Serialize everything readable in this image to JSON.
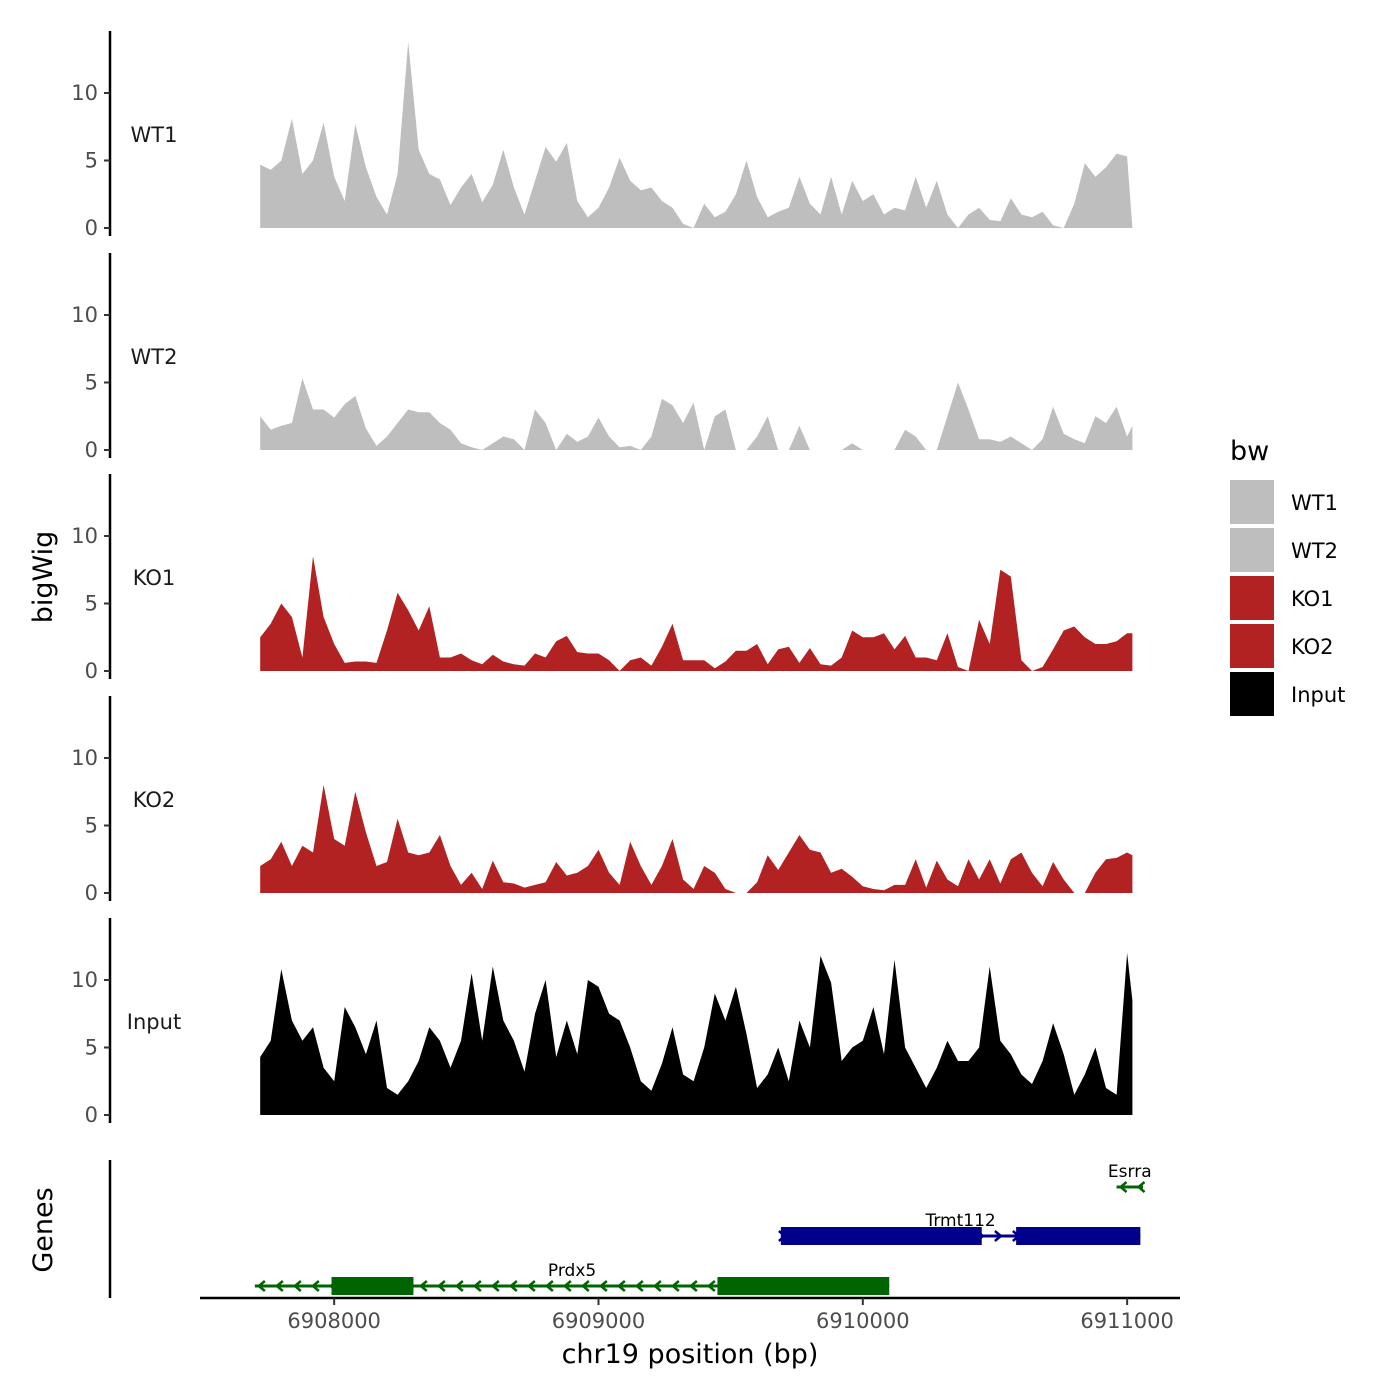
{
  "chart_data": {
    "type": "area",
    "title": "",
    "ylabel": "bigWig",
    "genes_label": "Genes",
    "xlabel": "chr19 position (bp)",
    "xlim": [
      6907500,
      6911200
    ],
    "ylim": [
      0,
      14.5
    ],
    "yticks": [
      0,
      5,
      10
    ],
    "xticks": [
      6908000,
      6909000,
      6910000,
      6911000
    ],
    "xtick_labels": [
      "6908000",
      "6909000",
      "6910000",
      "6911000"
    ],
    "legend": {
      "title": "bw",
      "position": "right",
      "items": [
        {
          "label": "WT1",
          "color": "#bebebe"
        },
        {
          "label": "WT2",
          "color": "#bebebe"
        },
        {
          "label": "KO1",
          "color": "#b22222"
        },
        {
          "label": "KO2",
          "color": "#b22222"
        },
        {
          "label": "Input",
          "color": "#000000"
        }
      ]
    },
    "x": [
      6907720,
      6907760,
      6907800,
      6907840,
      6907880,
      6907920,
      6907960,
      6908000,
      6908040,
      6908080,
      6908120,
      6908160,
      6908200,
      6908240,
      6908280,
      6908320,
      6908360,
      6908400,
      6908440,
      6908480,
      6908520,
      6908560,
      6908600,
      6908640,
      6908680,
      6908720,
      6908760,
      6908800,
      6908840,
      6908880,
      6908920,
      6908960,
      6909000,
      6909040,
      6909080,
      6909120,
      6909160,
      6909200,
      6909240,
      6909280,
      6909320,
      6909360,
      6909400,
      6909440,
      6909480,
      6909520,
      6909560,
      6909600,
      6909640,
      6909680,
      6909720,
      6909760,
      6909800,
      6909840,
      6909880,
      6909920,
      6909960,
      6910000,
      6910040,
      6910080,
      6910120,
      6910160,
      6910200,
      6910240,
      6910280,
      6910320,
      6910360,
      6910400,
      6910440,
      6910480,
      6910520,
      6910560,
      6910600,
      6910640,
      6910680,
      6910720,
      6910760,
      6910800,
      6910840,
      6910880,
      6910920,
      6910960,
      6911000,
      6911020
    ],
    "series": [
      {
        "name": "WT1",
        "color": "#bebebe",
        "values": [
          4.7,
          4.3,
          5.0,
          8.1,
          4.0,
          5.0,
          7.8,
          3.8,
          2.0,
          7.7,
          4.5,
          2.3,
          1.0,
          4.0,
          13.8,
          5.8,
          4.0,
          3.6,
          1.7,
          3.0,
          4.0,
          1.9,
          3.2,
          5.8,
          3.0,
          1.0,
          3.5,
          6.0,
          4.9,
          6.3,
          2.0,
          0.8,
          1.5,
          3.0,
          5.2,
          3.5,
          2.8,
          3.0,
          2.0,
          1.5,
          0.3,
          0.0,
          1.8,
          0.8,
          1.2,
          2.5,
          5.0,
          2.3,
          0.8,
          1.2,
          1.5,
          3.8,
          1.8,
          1.0,
          3.8,
          1.0,
          3.5,
          2.0,
          2.5,
          1.0,
          1.5,
          1.3,
          3.8,
          1.5,
          3.5,
          1.0,
          0.0,
          1.0,
          1.5,
          0.6,
          0.5,
          2.2,
          1.0,
          0.8,
          1.2,
          0.2,
          0.0,
          1.8,
          4.8,
          3.8,
          4.5,
          5.5,
          5.3,
          0.0
        ]
      },
      {
        "name": "WT2",
        "color": "#bebebe",
        "values": [
          2.5,
          1.5,
          1.8,
          2.0,
          5.3,
          3.0,
          3.0,
          2.4,
          3.4,
          4.0,
          1.6,
          0.3,
          1.0,
          2.0,
          3.0,
          2.8,
          2.8,
          2.0,
          1.5,
          0.5,
          0.2,
          0.0,
          0.5,
          1.0,
          0.8,
          0.0,
          3.0,
          2.0,
          0.0,
          1.2,
          0.6,
          1.0,
          2.4,
          1.0,
          0.2,
          0.3,
          0.0,
          1.0,
          3.8,
          3.3,
          2.0,
          3.5,
          0.0,
          2.5,
          3.0,
          0.0,
          0.0,
          1.0,
          2.5,
          0.0,
          0.0,
          1.8,
          0.0,
          0.0,
          0.0,
          0.0,
          0.5,
          0.0,
          0.0,
          0.0,
          0.0,
          1.5,
          1.0,
          0.0,
          0.0,
          2.5,
          5.0,
          3.0,
          0.8,
          0.8,
          0.6,
          1.0,
          0.5,
          0.0,
          0.8,
          3.2,
          1.2,
          0.8,
          0.5,
          2.5,
          2.0,
          3.2,
          1.0,
          1.8
        ]
      },
      {
        "name": "KO1",
        "color": "#b22222",
        "values": [
          2.5,
          3.5,
          5.0,
          4.0,
          1.0,
          8.5,
          4.0,
          2.0,
          0.6,
          0.7,
          0.7,
          0.6,
          3.0,
          5.8,
          4.5,
          3.0,
          4.8,
          1.0,
          1.0,
          1.3,
          0.8,
          0.5,
          1.2,
          0.7,
          0.5,
          0.4,
          1.3,
          1.0,
          2.2,
          2.6,
          1.4,
          1.3,
          1.3,
          0.8,
          0.0,
          0.8,
          1.0,
          0.4,
          1.8,
          3.5,
          0.8,
          0.8,
          0.8,
          0.2,
          0.7,
          1.5,
          1.5,
          2.0,
          0.5,
          1.6,
          1.8,
          0.6,
          1.7,
          0.5,
          0.4,
          1.0,
          3.0,
          2.5,
          2.5,
          2.8,
          1.6,
          2.6,
          1.0,
          1.0,
          0.8,
          2.8,
          0.3,
          0.0,
          3.8,
          2.0,
          7.5,
          7.0,
          0.8,
          0.0,
          0.3,
          1.6,
          3.0,
          3.3,
          2.5,
          2.0,
          2.0,
          2.2,
          2.8,
          2.8
        ]
      },
      {
        "name": "KO2",
        "color": "#b22222",
        "values": [
          2.0,
          2.5,
          3.8,
          2.0,
          3.5,
          3.0,
          8.0,
          4.0,
          3.5,
          7.5,
          4.5,
          2.0,
          2.3,
          5.5,
          3.0,
          2.8,
          3.0,
          4.3,
          2.0,
          0.6,
          1.5,
          0.3,
          2.4,
          0.8,
          0.7,
          0.4,
          0.6,
          0.8,
          2.3,
          1.3,
          1.5,
          2.0,
          3.2,
          1.5,
          0.6,
          3.8,
          2.0,
          0.6,
          2.0,
          4.0,
          1.0,
          0.3,
          2.0,
          1.5,
          0.3,
          0.0,
          0.0,
          0.8,
          2.8,
          1.7,
          3.0,
          4.3,
          3.2,
          3.0,
          1.5,
          1.8,
          1.2,
          0.5,
          0.3,
          0.2,
          0.6,
          0.6,
          2.5,
          0.4,
          2.4,
          1.0,
          0.5,
          2.5,
          1.0,
          2.5,
          0.7,
          2.5,
          3.0,
          1.5,
          0.5,
          2.3,
          1.0,
          0.0,
          0.0,
          1.5,
          2.5,
          2.6,
          3.0,
          2.8
        ]
      },
      {
        "name": "Input",
        "color": "#000000",
        "values": [
          4.3,
          5.5,
          10.8,
          7.0,
          5.5,
          6.5,
          3.5,
          2.5,
          8.0,
          6.5,
          4.5,
          7.0,
          2.0,
          1.5,
          2.5,
          4.0,
          6.5,
          5.5,
          3.5,
          5.5,
          10.5,
          5.5,
          11.0,
          7.0,
          5.5,
          3.2,
          7.5,
          10.0,
          4.3,
          7.0,
          4.5,
          10.0,
          9.5,
          7.5,
          7.0,
          5.0,
          2.5,
          1.8,
          3.8,
          6.5,
          3.0,
          2.5,
          5.0,
          9.0,
          7.0,
          9.5,
          6.0,
          2.0,
          3.0,
          5.0,
          2.5,
          7.0,
          5.0,
          11.8,
          9.8,
          4.0,
          5.0,
          5.5,
          8.0,
          4.5,
          11.5,
          5.0,
          3.5,
          2.0,
          3.5,
          5.5,
          4.0,
          4.0,
          5.0,
          11.0,
          5.5,
          4.5,
          3.0,
          2.3,
          4.0,
          6.8,
          4.5,
          1.5,
          3.0,
          5.0,
          2.0,
          1.5,
          12.0,
          8.5
        ]
      }
    ],
    "genes": [
      {
        "name": "Prdx5",
        "strand": "-",
        "color": "#006400",
        "start": 6907700,
        "end": 6910100,
        "exons": [
          [
            6907990,
            6908300
          ],
          [
            6909450,
            6910100
          ]
        ],
        "row": 0
      },
      {
        "name": "Trmt112",
        "strand": "+",
        "color": "#00008b",
        "start": 6909690,
        "end": 6911050,
        "exons": [
          [
            6909690,
            6910450
          ],
          [
            6910580,
            6911050
          ]
        ],
        "row": 1
      },
      {
        "name": "Esrra",
        "strand": "-",
        "color": "#006400",
        "start": 6910960,
        "end": 6911060,
        "exons": [],
        "row": 2
      }
    ]
  }
}
